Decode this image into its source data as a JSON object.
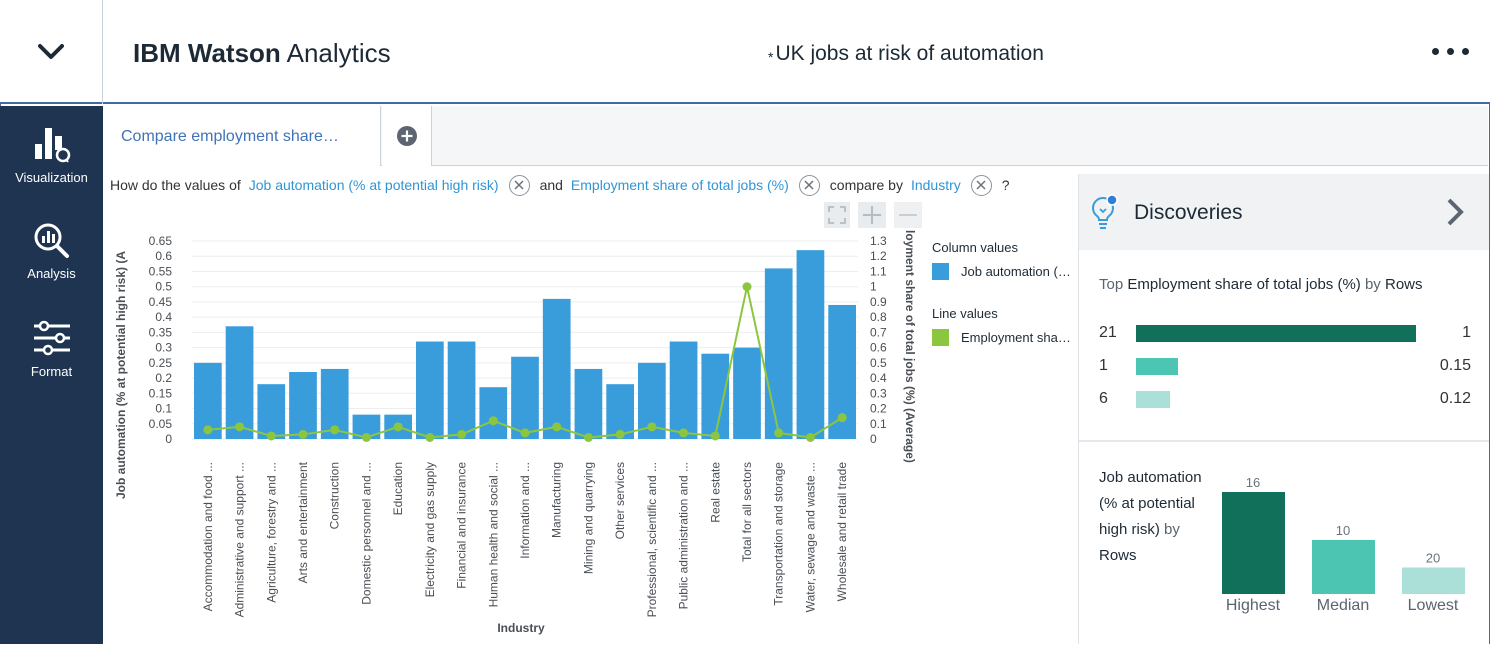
{
  "app": {
    "brand_bold": "IBM Watson",
    "brand_rest": " Analytics",
    "doc_title": "UK jobs at risk of automation",
    "dirty_marker": "*"
  },
  "sidebar": {
    "items": [
      {
        "label": "Visualization",
        "icon": "visualization-icon"
      },
      {
        "label": "Analysis",
        "icon": "analysis-icon"
      },
      {
        "label": "Format",
        "icon": "format-icon"
      }
    ]
  },
  "tabs": {
    "active_label": "Compare employment share…",
    "add_icon": "plus-circle-icon"
  },
  "question": {
    "prefix": "How do the values of",
    "field1": "Job automation (% at potential high risk)",
    "and": "and",
    "field2": "Employment share of total jobs (%)",
    "compare_by": "compare by",
    "field3": "Industry",
    "suffix": "?"
  },
  "legend": {
    "column_title": "Column values",
    "column_item": "Job automation (% at potential high risk)",
    "line_title": "Line values",
    "line_item": "Employment share of total jobs (%) (Average)",
    "column_color": "#3a9ddb",
    "line_color": "#8cc63e"
  },
  "chart_data": {
    "type": "bar",
    "categories": [
      "Accommodation and food ...",
      "Administrative and support ...",
      "Agriculture, forestry and ...",
      "Arts and entertainment",
      "Construction",
      "Domestic personnel and ...",
      "Education",
      "Electricity and gas supply",
      "Financial and insurance",
      "Human health and social ...",
      "Information and ...",
      "Manufacturing",
      "Mining and quarrying",
      "Other services",
      "Professional, scientific and ...",
      "Public administration and ...",
      "Real estate",
      "Total for all sectors",
      "Transportation and storage",
      "Water, sewage and waste ...",
      "Wholesale and retail trade"
    ],
    "series": [
      {
        "name": "Job automation (% at potential high risk)",
        "kind": "bar",
        "axis": "left",
        "values": [
          0.25,
          0.37,
          0.18,
          0.22,
          0.23,
          0.08,
          0.08,
          0.32,
          0.32,
          0.17,
          0.27,
          0.46,
          0.23,
          0.18,
          0.25,
          0.32,
          0.28,
          0.3,
          0.56,
          0.62,
          0.44
        ]
      },
      {
        "name": "Employment share of total jobs (%) (Average)",
        "kind": "line",
        "axis": "right",
        "values": [
          0.06,
          0.08,
          0.02,
          0.03,
          0.06,
          0.01,
          0.08,
          0.01,
          0.03,
          0.12,
          0.04,
          0.08,
          0.01,
          0.03,
          0.08,
          0.04,
          0.02,
          1.0,
          0.04,
          0.01,
          0.14
        ]
      }
    ],
    "xlabel": "Industry",
    "ylabel": "Job automation (% at potential high risk) (A",
    "y2label": "loyment share of total jobs (%) (Average)",
    "ylim": [
      0,
      0.65
    ],
    "yticks": [
      "0",
      "0.05",
      "0.1",
      "0.15",
      "0.2",
      "0.25",
      "0.3",
      "0.35",
      "0.4",
      "0.45",
      "0.5",
      "0.55",
      "0.6",
      "0.65"
    ],
    "y2lim": [
      0,
      1.3
    ],
    "y2ticks": [
      "0",
      "0.1",
      "0.2",
      "0.3",
      "0.4",
      "0.5",
      "0.6",
      "0.7",
      "0.8",
      "0.9",
      "1",
      "1.1",
      "1.2",
      "1.3"
    ],
    "grid": true
  },
  "discoveries": {
    "title": "Discoveries",
    "card1": {
      "title_prefix": "Top",
      "title_measure": "Employment share of total jobs (%)",
      "title_by": "by",
      "title_dim": "Rows",
      "rows": [
        {
          "rank": "21",
          "value": "1",
          "frac": 1.0,
          "color": "#10705a"
        },
        {
          "rank": "1",
          "value": "0.15",
          "frac": 0.15,
          "color": "#4cc5b3"
        },
        {
          "rank": "6",
          "value": "0.12",
          "frac": 0.12,
          "color": "#abe0d8"
        }
      ]
    },
    "card2": {
      "title_measure": "Job automation (% at potential high risk)",
      "title_by": "by",
      "title_dim": "Rows",
      "bars": [
        {
          "label": "Highest",
          "count": "16",
          "frac": 1.0,
          "color": "#10705a"
        },
        {
          "label": "Median",
          "count": "10",
          "frac": 0.53,
          "color": "#4cc5b3"
        },
        {
          "label": "Lowest",
          "count": "20",
          "frac": 0.26,
          "color": "#abe0d8"
        }
      ]
    }
  }
}
